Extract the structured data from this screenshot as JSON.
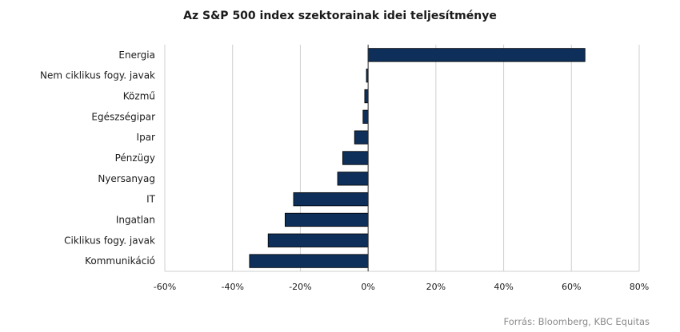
{
  "chart_data": {
    "type": "bar",
    "orientation": "horizontal",
    "title": "Az S&P 500 index szektorainak idei teljesítménye",
    "xlabel": "",
    "ylabel": "",
    "categories": [
      "Energia",
      "Nem ciklikus fogy. javak",
      "Közmű",
      "Egészségipar",
      "Ipar",
      "Pénzügy",
      "Nyersanyag",
      "IT",
      "Ingatlan",
      "Ciklikus fogy. javak",
      "Kommunikáció"
    ],
    "values": [
      64,
      -0.5,
      -1,
      -1.5,
      -4,
      -7.5,
      -9,
      -22,
      -24.5,
      -29.5,
      -35
    ],
    "xlim": [
      -60,
      80
    ],
    "xticks": [
      -60,
      -40,
      -20,
      0,
      20,
      40,
      60,
      80
    ],
    "tick_labels": [
      "-60%",
      "-40%",
      "-20%",
      "0%",
      "20%",
      "40%",
      "60%",
      "80%"
    ],
    "grid": true,
    "legend": "none",
    "bar_color": "#0d2f5a",
    "source": "Forrás: Bloomberg, KBC Equitas"
  }
}
